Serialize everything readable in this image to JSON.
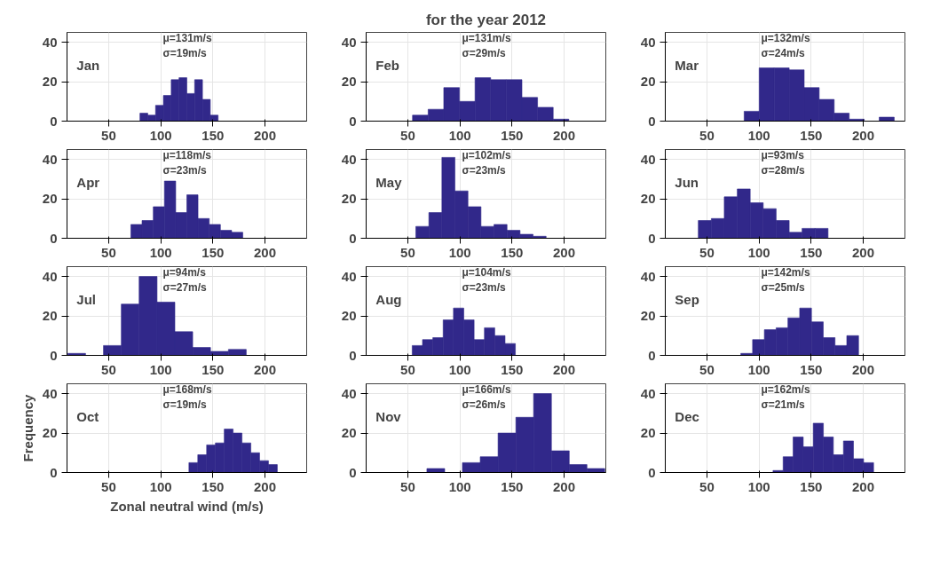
{
  "chart_data": [
    {
      "type": "histogram",
      "annotations": [
        "Jan",
        "μ=131m/s",
        "σ=19m/s"
      ],
      "bins": [
        80,
        87.5,
        95,
        102.5,
        110,
        117.5,
        125,
        132.5,
        140,
        147.5,
        155
      ],
      "values": [
        4,
        3,
        8,
        13,
        21,
        22,
        14,
        21,
        11,
        3
      ],
      "color": "#31288a",
      "xlim": [
        10,
        240
      ],
      "xticks": [
        50,
        100,
        150,
        200
      ],
      "ylim": [
        0,
        45
      ],
      "yticks": [
        0,
        20,
        40
      ],
      "grid": true
    },
    {
      "type": "histogram",
      "title": "for the year 2012",
      "annotations": [
        "Feb",
        "μ=131m/s",
        "σ=29m/s"
      ],
      "bins": [
        54.5,
        69.5,
        84.5,
        99.5,
        114.5,
        129.5,
        144.5,
        159.5,
        174.5,
        189.5,
        204.5
      ],
      "values": [
        3,
        6,
        17,
        10,
        22,
        21,
        21,
        12,
        7,
        1
      ],
      "color": "#31288a",
      "xlim": [
        10,
        240
      ],
      "xticks": [
        50,
        100,
        150,
        200
      ],
      "ylim": [
        0,
        45
      ],
      "yticks": [
        0,
        20,
        40
      ],
      "grid": true
    },
    {
      "type": "histogram",
      "annotations": [
        "Mar",
        "μ=132m/s",
        "σ=24m/s"
      ],
      "bins": [
        85.7,
        100.1,
        114.5,
        128.9,
        143.3,
        157.7,
        172.1,
        186.5,
        200.9,
        215.3,
        229.7
      ],
      "values": [
        5,
        27,
        27,
        26,
        17,
        11,
        4,
        1,
        0,
        2
      ],
      "color": "#31288a",
      "xlim": [
        10,
        240
      ],
      "xticks": [
        50,
        100,
        150,
        200
      ],
      "ylim": [
        0,
        45
      ],
      "yticks": [
        0,
        20,
        40
      ],
      "grid": true
    },
    {
      "type": "histogram",
      "annotations": [
        "Apr",
        "μ=118m/s",
        "σ=23m/s"
      ],
      "bins": [
        71.3,
        82,
        92.8,
        103.5,
        114.3,
        125,
        135.7,
        146.5,
        157.2,
        168,
        178.7
      ],
      "values": [
        7,
        9,
        16,
        29,
        13,
        22,
        10,
        7,
        4,
        3
      ],
      "color": "#31288a",
      "xlim": [
        10,
        240
      ],
      "xticks": [
        50,
        100,
        150,
        200
      ],
      "ylim": [
        0,
        45
      ],
      "yticks": [
        0,
        20,
        40
      ],
      "grid": true
    },
    {
      "type": "histogram",
      "annotations": [
        "May",
        "μ=102m/s",
        "σ=23m/s"
      ],
      "bins": [
        57.7,
        70.2,
        82.7,
        95.2,
        107.7,
        120.2,
        132.7,
        145.2,
        157.7,
        170.2,
        182.7
      ],
      "values": [
        6,
        13,
        41,
        24,
        16,
        6,
        7,
        4,
        2,
        1
      ],
      "color": "#31288a",
      "xlim": [
        10,
        240
      ],
      "xticks": [
        50,
        100,
        150,
        200
      ],
      "ylim": [
        0,
        45
      ],
      "yticks": [
        0,
        20,
        40
      ],
      "grid": true
    },
    {
      "type": "histogram",
      "annotations": [
        "Jun",
        "μ=93m/s",
        "σ=28m/s"
      ],
      "bins": [
        41.7,
        54.2,
        66.6,
        79.1,
        91.5,
        104,
        116.4,
        128.9,
        141.3,
        153.8,
        166.2
      ],
      "values": [
        9,
        10,
        21,
        25,
        18,
        15,
        9,
        3,
        5,
        5
      ],
      "color": "#31288a",
      "xlim": [
        10,
        240
      ],
      "xticks": [
        50,
        100,
        150,
        200
      ],
      "ylim": [
        0,
        45
      ],
      "yticks": [
        0,
        20,
        40
      ],
      "grid": true
    },
    {
      "type": "histogram",
      "annotations": [
        "Jul",
        "μ=94m/s",
        "σ=27m/s"
      ],
      "bins": [
        10.7,
        27.8,
        45,
        62.1,
        79.2,
        96.4,
        113.5,
        130.6,
        147.7,
        164.9,
        182
      ],
      "values": [
        1,
        0,
        5,
        26,
        40,
        27,
        12,
        4,
        2,
        3
      ],
      "color": "#31288a",
      "xlim": [
        10,
        240
      ],
      "xticks": [
        50,
        100,
        150,
        200
      ],
      "ylim": [
        0,
        45
      ],
      "yticks": [
        0,
        20,
        40
      ],
      "grid": true
    },
    {
      "type": "histogram",
      "annotations": [
        "Aug",
        "μ=104m/s",
        "σ=23m/s"
      ],
      "bins": [
        54.2,
        64.1,
        74,
        83.9,
        93.8,
        103.7,
        113.6,
        123.5,
        133.4,
        143.3,
        153.2
      ],
      "values": [
        5,
        8,
        9,
        18,
        24,
        18,
        8,
        14,
        10,
        6
      ],
      "color": "#31288a",
      "xlim": [
        10,
        240
      ],
      "xticks": [
        50,
        100,
        150,
        200
      ],
      "ylim": [
        0,
        45
      ],
      "yticks": [
        0,
        20,
        40
      ],
      "grid": true
    },
    {
      "type": "histogram",
      "annotations": [
        "Sep",
        "μ=142m/s",
        "σ=25m/s"
      ],
      "bins": [
        82.5,
        93.8,
        105.1,
        116.4,
        127.7,
        139,
        150.3,
        161.6,
        172.9,
        184.2,
        195.5
      ],
      "values": [
        1,
        8,
        13,
        14,
        19,
        24,
        17,
        9,
        5,
        10
      ],
      "color": "#31288a",
      "xlim": [
        10,
        240
      ],
      "xticks": [
        50,
        100,
        150,
        200
      ],
      "ylim": [
        0,
        45
      ],
      "yticks": [
        0,
        20,
        40
      ],
      "grid": true
    },
    {
      "type": "histogram",
      "xlabel": "Zonal neutral wind (m/s)",
      "ylabel": "Frequency",
      "annotations": [
        "Oct",
        "μ=168m/s",
        "σ=19m/s"
      ],
      "bins": [
        127,
        135.5,
        144,
        152.4,
        160.9,
        169.4,
        177.9,
        186.4,
        194.8,
        203.3,
        211.8
      ],
      "values": [
        5,
        9,
        14,
        15,
        22,
        20,
        15,
        10,
        6,
        4
      ],
      "color": "#31288a",
      "xlim": [
        10,
        240
      ],
      "xticks": [
        50,
        100,
        150,
        200
      ],
      "ylim": [
        0,
        45
      ],
      "yticks": [
        0,
        20,
        40
      ],
      "grid": true
    },
    {
      "type": "histogram",
      "annotations": [
        "Nov",
        "μ=166m/s",
        "σ=26m/s"
      ],
      "bins": [
        68.3,
        85.4,
        102.4,
        119.5,
        136.6,
        153.7,
        170.7,
        187.8,
        204.9,
        221.9,
        239
      ],
      "values": [
        2,
        0,
        5,
        8,
        20,
        28,
        40,
        11,
        4,
        2
      ],
      "color": "#31288a",
      "xlim": [
        10,
        240
      ],
      "xticks": [
        50,
        100,
        150,
        200
      ],
      "ylim": [
        0,
        45
      ],
      "yticks": [
        0,
        20,
        40
      ],
      "grid": true
    },
    {
      "type": "histogram",
      "annotations": [
        "Dec",
        "μ=162m/s",
        "σ=21m/s"
      ],
      "bins": [
        113.4,
        123.1,
        132.7,
        142.4,
        152,
        161.7,
        171.3,
        181,
        190.6,
        200.3,
        209.9
      ],
      "values": [
        1,
        8,
        18,
        13,
        25,
        18,
        9,
        16,
        7,
        5
      ],
      "color": "#31288a",
      "xlim": [
        10,
        240
      ],
      "xticks": [
        50,
        100,
        150,
        200
      ],
      "ylim": [
        0,
        45
      ],
      "yticks": [
        0,
        20,
        40
      ],
      "grid": true
    }
  ]
}
